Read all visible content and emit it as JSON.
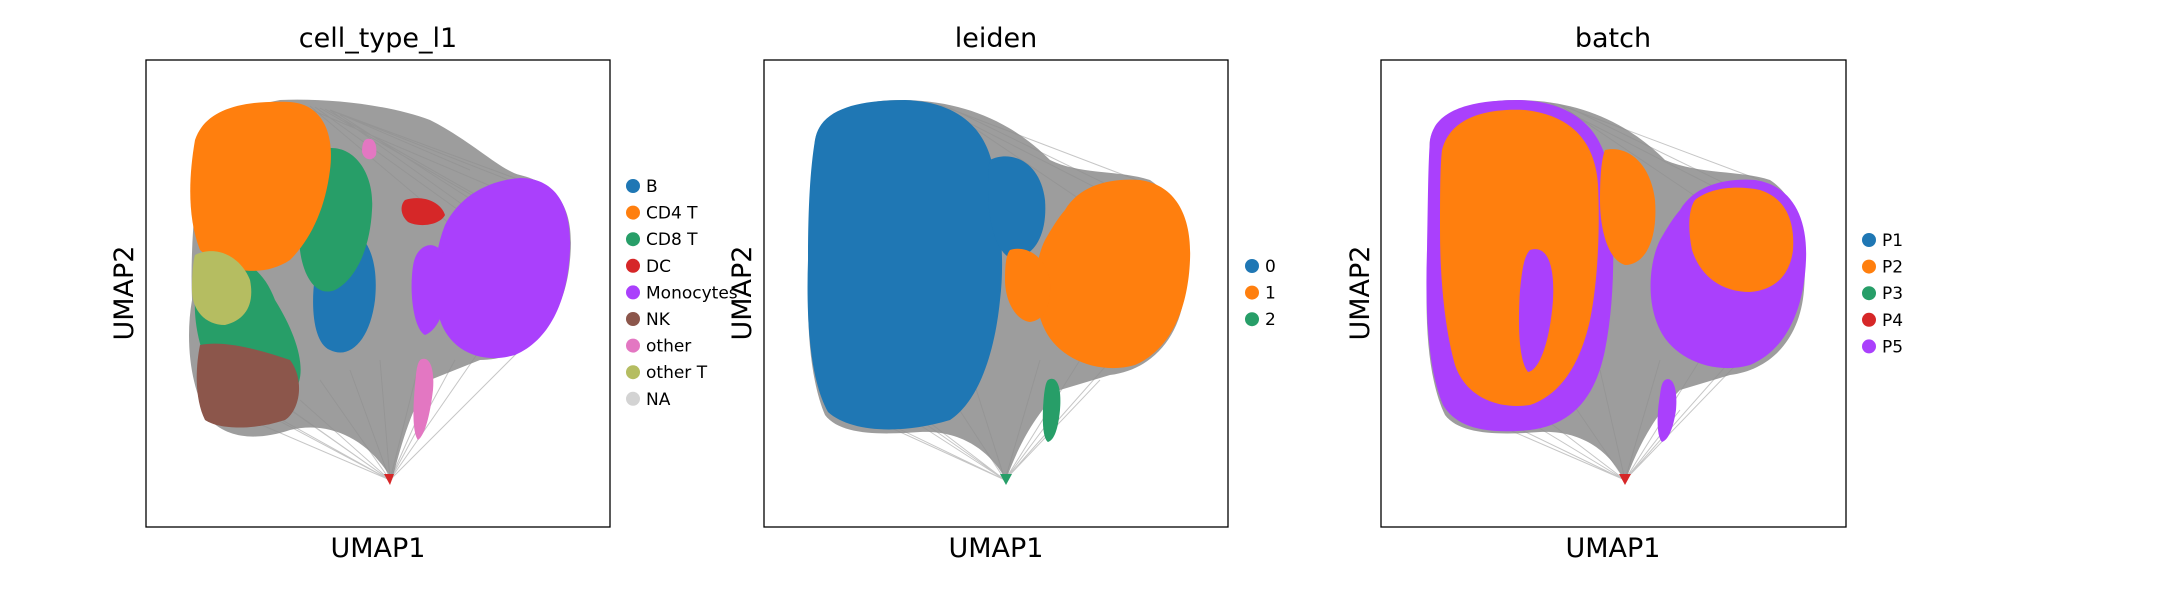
{
  "chart_data": [
    {
      "type": "scatter",
      "title": "cell_type_l1",
      "xlabel": "UMAP1",
      "ylabel": "UMAP2",
      "ticks": false,
      "legend_position": "right",
      "categories": [
        "B",
        "CD4 T",
        "CD8 T",
        "DC",
        "Monocytes",
        "NK",
        "other",
        "other T",
        "NA"
      ],
      "colors": [
        "#1f77b4",
        "#ff7f0e",
        "#279e68",
        "#d62728",
        "#aa40fc",
        "#8c564b",
        "#e377c2",
        "#b5bd61",
        "#d3d3d3"
      ]
    },
    {
      "type": "scatter",
      "title": "leiden",
      "xlabel": "UMAP1",
      "ylabel": "UMAP2",
      "ticks": false,
      "legend_position": "right",
      "categories": [
        "0",
        "1",
        "2"
      ],
      "colors": [
        "#1f77b4",
        "#ff7f0e",
        "#279e68"
      ]
    },
    {
      "type": "scatter",
      "title": "batch",
      "xlabel": "UMAP1",
      "ylabel": "UMAP2",
      "ticks": false,
      "legend_position": "right",
      "categories": [
        "P1",
        "P2",
        "P3",
        "P4",
        "P5"
      ],
      "colors": [
        "#1f77b4",
        "#ff7f0e",
        "#279e68",
        "#d62728",
        "#aa40fc"
      ]
    }
  ]
}
